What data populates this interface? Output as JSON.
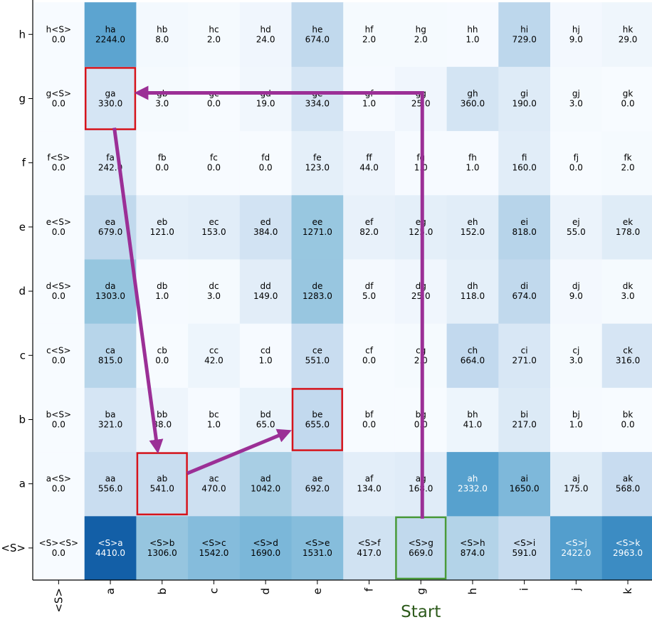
{
  "chart_data": {
    "type": "heatmap",
    "x_categories": [
      "<S>",
      "a",
      "b",
      "c",
      "d",
      "e",
      "f",
      "g",
      "h",
      "i",
      "j",
      "k"
    ],
    "y_categories": [
      "<S>",
      "a",
      "b",
      "c",
      "d",
      "e",
      "f",
      "g",
      "h"
    ],
    "cells": [
      [
        {
          "label": "<S><S>",
          "value": "0.0",
          "v": 0
        },
        {
          "label": "<S>a",
          "value": "4410.0",
          "v": 4410
        },
        {
          "label": "<S>b",
          "value": "1306.0",
          "v": 1306
        },
        {
          "label": "<S>c",
          "value": "1542.0",
          "v": 1542
        },
        {
          "label": "<S>d",
          "value": "1690.0",
          "v": 1690
        },
        {
          "label": "<S>e",
          "value": "1531.0",
          "v": 1531
        },
        {
          "label": "<S>f",
          "value": "417.0",
          "v": 417
        },
        {
          "label": "<S>g",
          "value": "669.0",
          "v": 669
        },
        {
          "label": "<S>h",
          "value": "874.0",
          "v": 874
        },
        {
          "label": "<S>i",
          "value": "591.0",
          "v": 591
        },
        {
          "label": "<S>j",
          "value": "2422.0",
          "v": 2422
        },
        {
          "label": "<S>k",
          "value": "2963.0",
          "v": 2963
        }
      ],
      [
        {
          "label": "a<S>",
          "value": "0.0",
          "v": 0
        },
        {
          "label": "aa",
          "value": "556.0",
          "v": 556
        },
        {
          "label": "ab",
          "value": "541.0",
          "v": 541
        },
        {
          "label": "ac",
          "value": "470.0",
          "v": 470
        },
        {
          "label": "ad",
          "value": "1042.0",
          "v": 1042
        },
        {
          "label": "ae",
          "value": "692.0",
          "v": 692
        },
        {
          "label": "af",
          "value": "134.0",
          "v": 134
        },
        {
          "label": "ag",
          "value": "168.0",
          "v": 168
        },
        {
          "label": "ah",
          "value": "2332.0",
          "v": 2332
        },
        {
          "label": "ai",
          "value": "1650.0",
          "v": 1650
        },
        {
          "label": "aj",
          "value": "175.0",
          "v": 175
        },
        {
          "label": "ak",
          "value": "568.0",
          "v": 568
        }
      ],
      [
        {
          "label": "b<S>",
          "value": "0.0",
          "v": 0
        },
        {
          "label": "ba",
          "value": "321.0",
          "v": 321
        },
        {
          "label": "bb",
          "value": "38.0",
          "v": 38
        },
        {
          "label": "bc",
          "value": "1.0",
          "v": 1
        },
        {
          "label": "bd",
          "value": "65.0",
          "v": 65
        },
        {
          "label": "be",
          "value": "655.0",
          "v": 655
        },
        {
          "label": "bf",
          "value": "0.0",
          "v": 0
        },
        {
          "label": "bg",
          "value": "0.0",
          "v": 0
        },
        {
          "label": "bh",
          "value": "41.0",
          "v": 41
        },
        {
          "label": "bi",
          "value": "217.0",
          "v": 217
        },
        {
          "label": "bj",
          "value": "1.0",
          "v": 1
        },
        {
          "label": "bk",
          "value": "0.0",
          "v": 0
        }
      ],
      [
        {
          "label": "c<S>",
          "value": "0.0",
          "v": 0
        },
        {
          "label": "ca",
          "value": "815.0",
          "v": 815
        },
        {
          "label": "cb",
          "value": "0.0",
          "v": 0
        },
        {
          "label": "cc",
          "value": "42.0",
          "v": 42
        },
        {
          "label": "cd",
          "value": "1.0",
          "v": 1
        },
        {
          "label": "ce",
          "value": "551.0",
          "v": 551
        },
        {
          "label": "cf",
          "value": "0.0",
          "v": 0
        },
        {
          "label": "cg",
          "value": "2.0",
          "v": 2
        },
        {
          "label": "ch",
          "value": "664.0",
          "v": 664
        },
        {
          "label": "ci",
          "value": "271.0",
          "v": 271
        },
        {
          "label": "cj",
          "value": "3.0",
          "v": 3
        },
        {
          "label": "ck",
          "value": "316.0",
          "v": 316
        }
      ],
      [
        {
          "label": "d<S>",
          "value": "0.0",
          "v": 0
        },
        {
          "label": "da",
          "value": "1303.0",
          "v": 1303
        },
        {
          "label": "db",
          "value": "1.0",
          "v": 1
        },
        {
          "label": "dc",
          "value": "3.0",
          "v": 3
        },
        {
          "label": "dd",
          "value": "149.0",
          "v": 149
        },
        {
          "label": "de",
          "value": "1283.0",
          "v": 1283
        },
        {
          "label": "df",
          "value": "5.0",
          "v": 5
        },
        {
          "label": "dg",
          "value": "25.0",
          "v": 25
        },
        {
          "label": "dh",
          "value": "118.0",
          "v": 118
        },
        {
          "label": "di",
          "value": "674.0",
          "v": 674
        },
        {
          "label": "dj",
          "value": "9.0",
          "v": 9
        },
        {
          "label": "dk",
          "value": "3.0",
          "v": 3
        }
      ],
      [
        {
          "label": "e<S>",
          "value": "0.0",
          "v": 0
        },
        {
          "label": "ea",
          "value": "679.0",
          "v": 679
        },
        {
          "label": "eb",
          "value": "121.0",
          "v": 121
        },
        {
          "label": "ec",
          "value": "153.0",
          "v": 153
        },
        {
          "label": "ed",
          "value": "384.0",
          "v": 384
        },
        {
          "label": "ee",
          "value": "1271.0",
          "v": 1271
        },
        {
          "label": "ef",
          "value": "82.0",
          "v": 82
        },
        {
          "label": "eg",
          "value": "125.0",
          "v": 125
        },
        {
          "label": "eh",
          "value": "152.0",
          "v": 152
        },
        {
          "label": "ei",
          "value": "818.0",
          "v": 818
        },
        {
          "label": "ej",
          "value": "55.0",
          "v": 55
        },
        {
          "label": "ek",
          "value": "178.0",
          "v": 178
        }
      ],
      [
        {
          "label": "f<S>",
          "value": "0.0",
          "v": 0
        },
        {
          "label": "fa",
          "value": "242.0",
          "v": 242
        },
        {
          "label": "fb",
          "value": "0.0",
          "v": 0
        },
        {
          "label": "fc",
          "value": "0.0",
          "v": 0
        },
        {
          "label": "fd",
          "value": "0.0",
          "v": 0
        },
        {
          "label": "fe",
          "value": "123.0",
          "v": 123
        },
        {
          "label": "ff",
          "value": "44.0",
          "v": 44
        },
        {
          "label": "fg",
          "value": "1.0",
          "v": 1
        },
        {
          "label": "fh",
          "value": "1.0",
          "v": 1
        },
        {
          "label": "fi",
          "value": "160.0",
          "v": 160
        },
        {
          "label": "fj",
          "value": "0.0",
          "v": 0
        },
        {
          "label": "fk",
          "value": "2.0",
          "v": 2
        }
      ],
      [
        {
          "label": "g<S>",
          "value": "0.0",
          "v": 0
        },
        {
          "label": "ga",
          "value": "330.0",
          "v": 330
        },
        {
          "label": "gb",
          "value": "3.0",
          "v": 3
        },
        {
          "label": "gc",
          "value": "0.0",
          "v": 0
        },
        {
          "label": "gd",
          "value": "19.0",
          "v": 19
        },
        {
          "label": "ge",
          "value": "334.0",
          "v": 334
        },
        {
          "label": "gf",
          "value": "1.0",
          "v": 1
        },
        {
          "label": "gg",
          "value": "25.0",
          "v": 25
        },
        {
          "label": "gh",
          "value": "360.0",
          "v": 360
        },
        {
          "label": "gi",
          "value": "190.0",
          "v": 190
        },
        {
          "label": "gj",
          "value": "3.0",
          "v": 3
        },
        {
          "label": "gk",
          "value": "0.0",
          "v": 0
        }
      ],
      [
        {
          "label": "h<S>",
          "value": "0.0",
          "v": 0
        },
        {
          "label": "ha",
          "value": "2244.0",
          "v": 2244
        },
        {
          "label": "hb",
          "value": "8.0",
          "v": 8
        },
        {
          "label": "hc",
          "value": "2.0",
          "v": 2
        },
        {
          "label": "hd",
          "value": "24.0",
          "v": 24
        },
        {
          "label": "he",
          "value": "674.0",
          "v": 674
        },
        {
          "label": "hf",
          "value": "2.0",
          "v": 2
        },
        {
          "label": "hg",
          "value": "2.0",
          "v": 2
        },
        {
          "label": "hh",
          "value": "1.0",
          "v": 1
        },
        {
          "label": "hi",
          "value": "729.0",
          "v": 729
        },
        {
          "label": "hj",
          "value": "9.0",
          "v": 9
        },
        {
          "label": "hk",
          "value": "29.0",
          "v": 29
        }
      ]
    ],
    "colormap": "Blues",
    "vmax": 4410,
    "highlights": [
      {
        "cell": "<S>g",
        "color": "#4a9a3a"
      },
      {
        "cell": "ga",
        "color": "#d6141c"
      },
      {
        "cell": "ab",
        "color": "#d6141c"
      },
      {
        "cell": "be",
        "color": "#d6141c"
      }
    ],
    "path_arrows": {
      "color": "#9b2f96",
      "sequence": [
        "<S>g",
        "gg",
        "ga",
        "ab",
        "be"
      ]
    },
    "annotations": [
      {
        "text": "Start",
        "under_column": "g",
        "color": "#2d5a1b"
      }
    ]
  }
}
